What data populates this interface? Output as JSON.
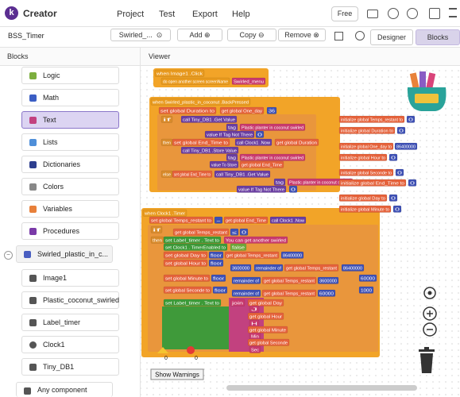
{
  "app": {
    "name": "Creator",
    "menu": [
      "Project",
      "Test",
      "Export",
      "Help"
    ],
    "plan": "Free"
  },
  "toolbar": {
    "project": "BSS_Timer",
    "screen": "Swirled_...",
    "add": "Add",
    "copy": "Copy",
    "remove": "Remove",
    "designer": "Designer",
    "blocks": "Blocks"
  },
  "panels": {
    "blocks": "Blocks",
    "viewer": "Viewer"
  },
  "palette": [
    "Logic",
    "Math",
    "Text",
    "Lists",
    "Dictionaries",
    "Colors",
    "Variables",
    "Procedures"
  ],
  "screen_component": "Swirled_plastic_in_c...",
  "components": [
    "Image1",
    "Plastic_coconut_swirled",
    "Label_timer",
    "Clock1",
    "Tiny_DB1"
  ],
  "any_component": "Any component",
  "warnings": {
    "warning_count": "0",
    "error_count": "0",
    "button": "Show Warnings"
  },
  "blocks": [
    "when Image1 .Click",
    "do open another screen screenName",
    "Swirled_menu",
    "when Swirled_plastic_in_coconut .BackPressed",
    "set global Duration to",
    "get global One_day",
    "36",
    "if",
    "call Tiny_DB1 .Get Value",
    "tag",
    "Plastic planter in coconut swirled",
    "value If Tag Not There",
    "0",
    "then",
    "set global End_Time to",
    "call Clock1 .Now",
    "get global Duration",
    "call Tiny_DB1 .Store Value",
    "tag",
    "Plastic planter in coconut swirled",
    "value To Store",
    "get global End_Time",
    "else",
    "set global End_Time to",
    "call Tiny_DB1 .Get Value",
    "tag",
    "Plastic planter in coconut swirled",
    "value If Tag Not There",
    "0",
    "initialize global Temps_restant to",
    "0",
    "initialize global Duration to",
    "0",
    "initialize global One_day to",
    "86400000",
    "initialize global Hour to",
    "0",
    "initialize global Seconde to",
    "0",
    "initialize global End_Time to",
    "0",
    "initialize global Day to",
    "0",
    "initialize global Minute to",
    "0",
    "when Clock1 .Timer",
    "set global Temps_restant to",
    "-",
    "get global End_Time",
    "call Clock1 .Now",
    "if",
    "get global Temps_restant",
    "≤",
    "0",
    "then",
    "set Label_timer . Text to",
    "You can get another swirled",
    "set Clock1 . TimerEnabled to",
    "false",
    "set global Day to",
    "floor",
    "get global Temps_restant",
    "86400000",
    "set global Hour to",
    "floor",
    "3600000",
    "remainder of",
    "get global Temps_restant",
    "86400000",
    "set global Minute to",
    "floor",
    "remainder of",
    "get global Temps_restant",
    "3600000",
    "60000",
    "set global Seconde to",
    "floor",
    "remainder of",
    "get global Temps_restant",
    "60000",
    "1000",
    "set Label_timer . Text to",
    "join",
    "get global Day",
    "J",
    "get global Hour",
    "H",
    "get global Minute",
    "Min",
    "get global Seconde",
    "Sec"
  ]
}
